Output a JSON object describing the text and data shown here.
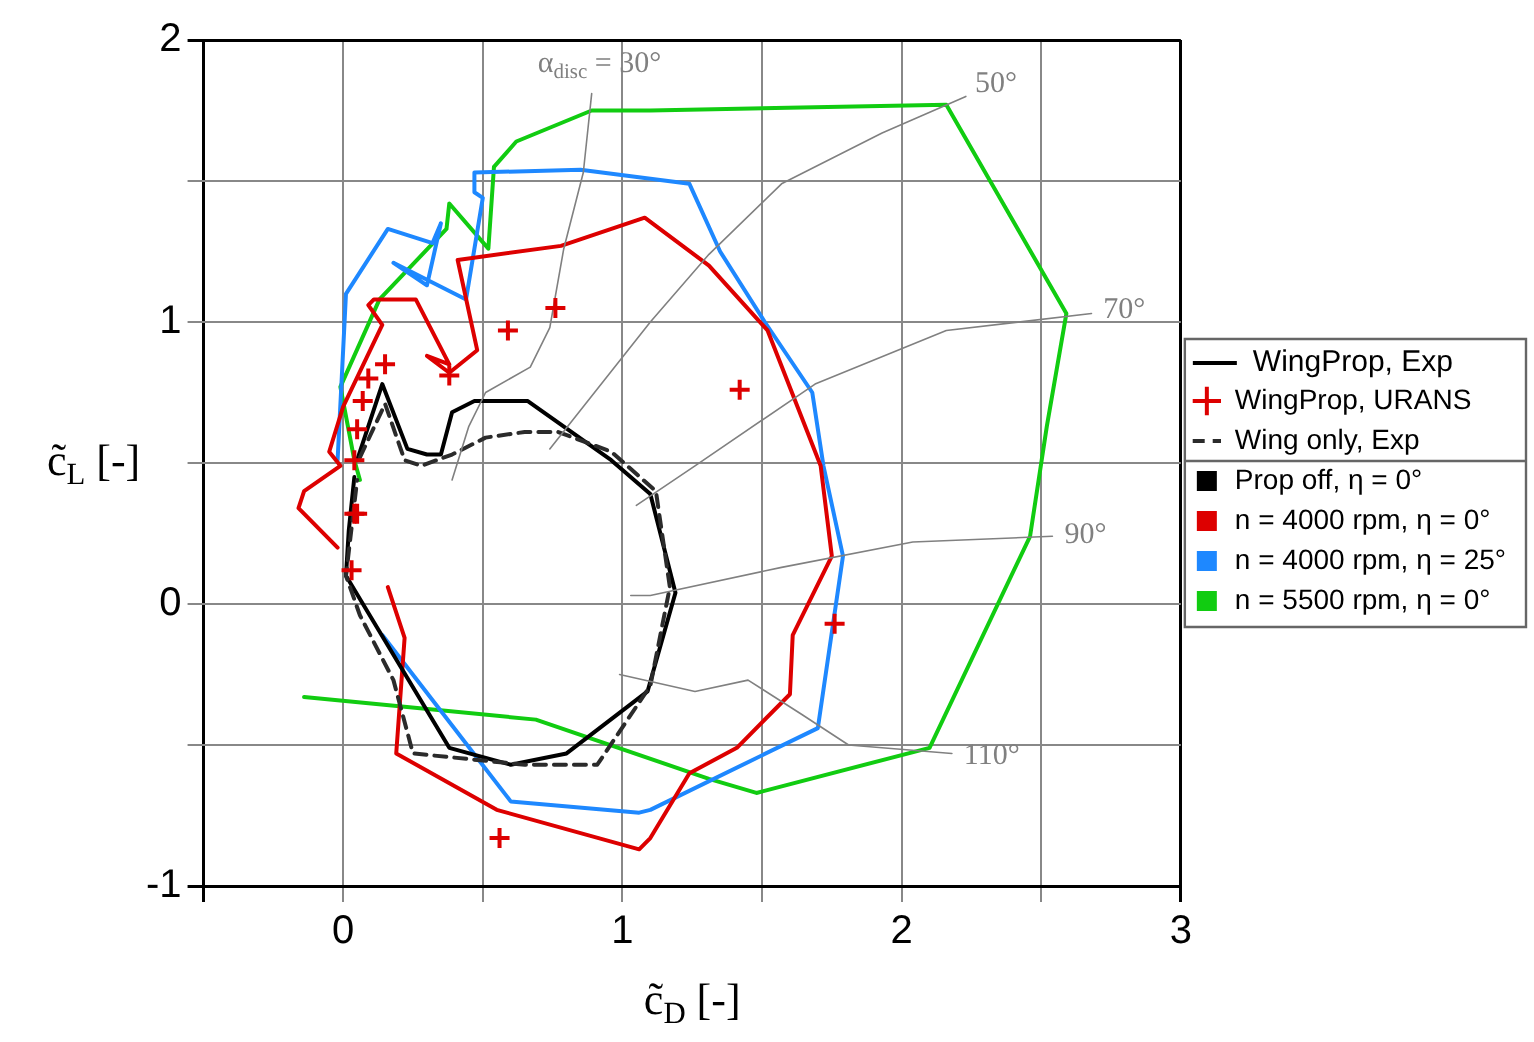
{
  "chart_data": {
    "type": "line",
    "xlabel": "c̃$_{D}$ [-]",
    "ylabel": "c̃$_{L}$ [-]",
    "legend_title": "WingProp, Exp",
    "legend": "right",
    "grid": true,
    "line_style": "solid",
    "xlim": [
      -0.5,
      3
    ],
    "xticks": [
      {
        "value": -0.5,
        "label": null
      },
      0,
      {
        "value": 0.5,
        "label": null
      },
      1,
      {
        "value": 1.5,
        "label": null
      },
      2,
      {
        "value": 2.5,
        "label": null
      },
      3
    ],
    "ylim": [
      -1,
      2
    ],
    "yticks": [
      -1,
      {
        "value": -0.5,
        "label": null
      },
      0,
      {
        "value": 0.5,
        "label": null
      },
      1,
      {
        "value": 1.5,
        "label": null
      },
      2
    ],
    "series": [
      {
        "type": "scatter",
        "name": "WingProp, URANS",
        "color": "#dd0000",
        "marker": "cross",
        "x": [
          0.76,
          0.59,
          0.38,
          0.15,
          0.09,
          0.07,
          0.05,
          0.04,
          0.04,
          0.05,
          0.03,
          0.56,
          1.76,
          1.42
        ],
        "values": [
          1.05,
          0.97,
          0.81,
          0.85,
          0.8,
          0.72,
          0.62,
          0.51,
          0.32,
          0.32,
          0.12,
          -0.83,
          -0.07,
          0.76
        ]
      },
      {
        "color": "#808080",
        "x": [
          0.89,
          0.86,
          0.79,
          0.74,
          0.67,
          0.51,
          0.45,
          0.39
        ],
        "values": [
          1.81,
          1.53,
          1.26,
          0.98,
          0.84,
          0.75,
          0.63,
          0.44
        ]
      },
      {
        "color": "#808080",
        "x": [
          2.23,
          1.93,
          1.57,
          1.31,
          1.1,
          0.74
        ],
        "values": [
          1.8,
          1.67,
          1.49,
          1.24,
          1.0,
          0.55
        ]
      },
      {
        "color": "#808080",
        "x": [
          2.68,
          2.16,
          1.69,
          1.26,
          1.05
        ],
        "values": [
          1.03,
          0.97,
          0.78,
          0.49,
          0.35
        ]
      },
      {
        "color": "#808080",
        "x": [
          2.54,
          2.04,
          1.57,
          1.1,
          1.03
        ],
        "values": [
          0.24,
          0.22,
          0.13,
          0.03,
          0.03
        ]
      },
      {
        "color": "#808080",
        "x": [
          2.18,
          1.81,
          1.64,
          1.45,
          1.26,
          0.99
        ],
        "values": [
          -0.53,
          -0.5,
          -0.39,
          -0.27,
          -0.31,
          -0.25
        ]
      },
      {
        "name": "Wing only, Exp",
        "color": "#2b2b2b",
        "line_style": "dashed",
        "x": [
          0.06,
          0.15,
          0.22,
          0.28,
          0.39,
          0.51,
          0.65,
          0.77,
          0.96,
          1.12,
          1.17,
          1.1,
          0.91,
          0.65,
          0.25,
          0.18,
          0.06,
          0.01,
          0.05
        ],
        "values": [
          0.52,
          0.71,
          0.51,
          0.49,
          0.53,
          0.59,
          0.61,
          0.61,
          0.54,
          0.4,
          0.06,
          -0.29,
          -0.57,
          -0.57,
          -0.53,
          -0.27,
          -0.04,
          0.1,
          0.44
        ]
      },
      {
        "name": "Prop off, η = 0°",
        "color": "#000000",
        "x": [
          0.05,
          0.14,
          0.23,
          0.3,
          0.35,
          0.39,
          0.47,
          0.66,
          0.96,
          1.1,
          1.19,
          1.09,
          0.8,
          0.6,
          0.38,
          0.01,
          0.02,
          0.04
        ],
        "values": [
          0.51,
          0.78,
          0.55,
          0.53,
          0.53,
          0.68,
          0.72,
          0.72,
          0.51,
          0.39,
          0.04,
          -0.31,
          -0.53,
          -0.57,
          -0.51,
          0.1,
          0.26,
          0.45
        ]
      },
      {
        "name": "n = 4000 rpm, η = 0°",
        "color": "#dd0000",
        "x": [
          -0.02,
          -0.16,
          -0.14,
          -0.01,
          -0.05,
          0.0,
          0.14,
          0.09,
          0.11,
          0.26,
          0.38,
          0.3,
          0.38,
          0.48,
          0.41,
          0.78,
          1.08,
          1.31,
          1.52,
          1.71,
          1.75,
          1.61,
          1.6,
          1.41,
          1.24,
          1.1,
          1.06,
          0.55,
          0.19,
          0.22,
          0.16
        ],
        "values": [
          0.2,
          0.34,
          0.4,
          0.49,
          0.54,
          0.7,
          0.99,
          1.06,
          1.08,
          1.08,
          0.85,
          0.88,
          0.82,
          0.9,
          1.22,
          1.27,
          1.37,
          1.2,
          0.97,
          0.49,
          0.17,
          -0.11,
          -0.32,
          -0.51,
          -0.6,
          -0.83,
          -0.87,
          -0.73,
          -0.53,
          -0.12,
          0.06
        ]
      },
      {
        "name": "n = 4000 rpm, η = 25°",
        "color": "#1e88ff",
        "x": [
          -0.02,
          0.01,
          0.16,
          0.32,
          0.35,
          0.3,
          0.18,
          0.44,
          0.5,
          0.47,
          0.47,
          0.85,
          1.24,
          1.35,
          1.51,
          1.68,
          1.72,
          1.79,
          1.7,
          1.1,
          1.06,
          0.6,
          0.14
        ],
        "values": [
          0.51,
          1.1,
          1.33,
          1.28,
          1.35,
          1.13,
          1.21,
          1.08,
          1.44,
          1.46,
          1.53,
          1.54,
          1.49,
          1.25,
          1.0,
          0.75,
          0.49,
          0.17,
          -0.44,
          -0.73,
          -0.74,
          -0.7,
          -0.11
        ]
      },
      {
        "name": "n = 5500 rpm, η = 0°",
        "color": "#11cc11",
        "x": [
          -0.14,
          0.69,
          1.31,
          1.48,
          2.1,
          2.46,
          2.52,
          2.59,
          2.16,
          1.1,
          0.89,
          0.62,
          0.54,
          0.52,
          0.38,
          0.37,
          0.13,
          -0.01,
          0.04,
          0.06
        ],
        "values": [
          -0.33,
          -0.41,
          -0.62,
          -0.67,
          -0.51,
          0.24,
          0.63,
          1.03,
          1.77,
          1.75,
          1.75,
          1.64,
          1.55,
          1.26,
          1.42,
          1.33,
          1.08,
          0.77,
          0.51,
          0.44
        ]
      }
    ],
    "annotations": [
      "α$_{disc}$ = 30°",
      "50°",
      "70°",
      "90°",
      "110°"
    ]
  }
}
